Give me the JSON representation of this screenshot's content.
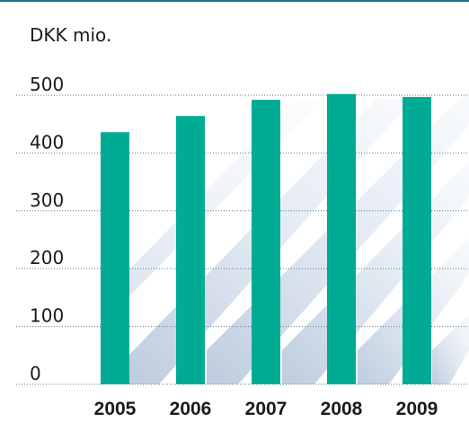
{
  "chart_data": {
    "type": "bar",
    "y_label": "DKK mio.",
    "categories": [
      "2005",
      "2006",
      "2007",
      "2008",
      "2009"
    ],
    "values": [
      436,
      464,
      492,
      502,
      497
    ],
    "color": "#00ab94",
    "ylim": [
      0,
      500
    ],
    "yticks": [
      0,
      100,
      200,
      300,
      400,
      500
    ],
    "grid": true
  }
}
